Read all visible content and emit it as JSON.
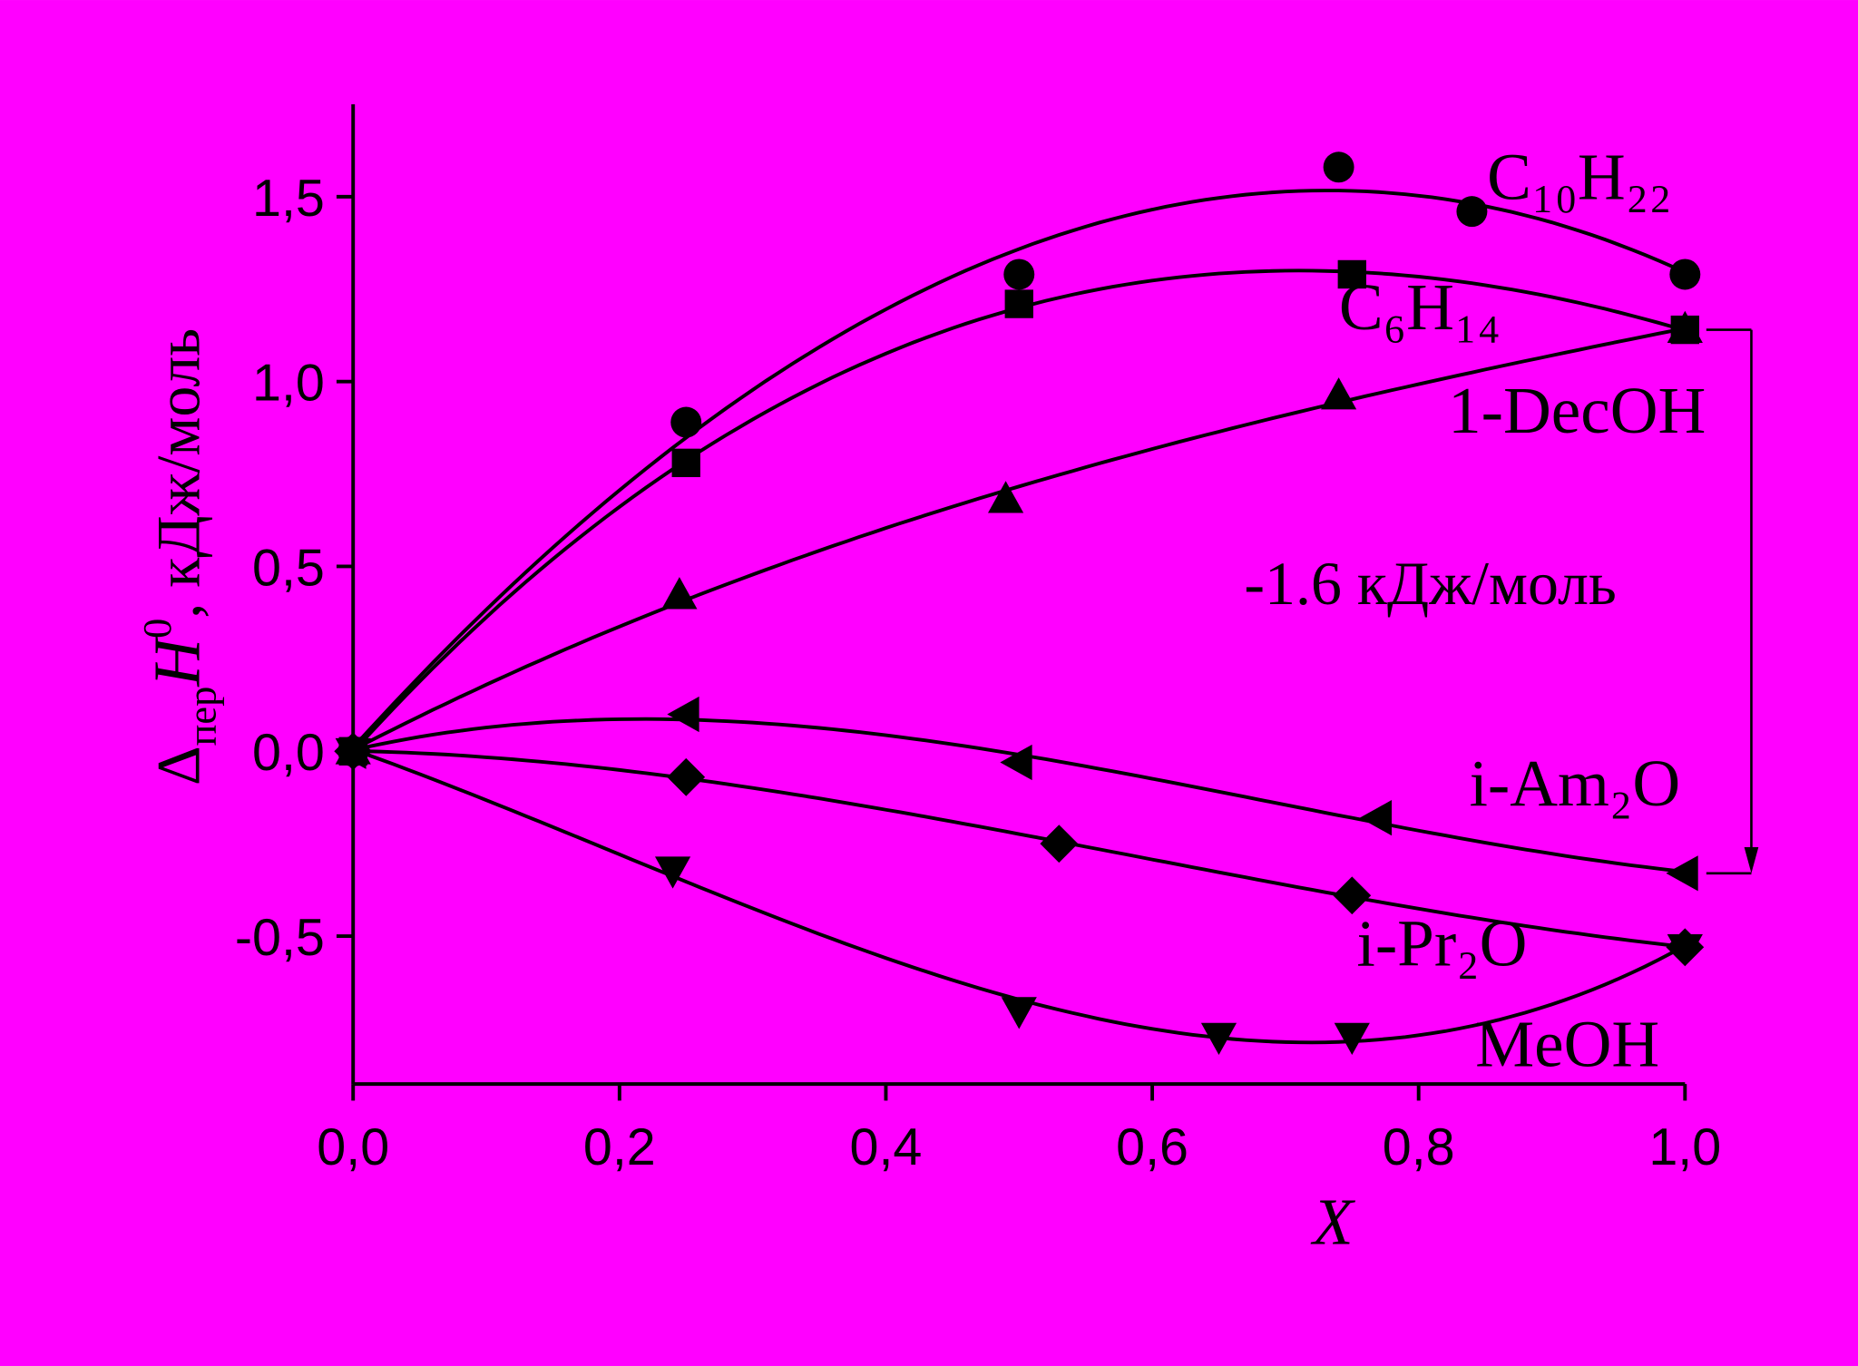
{
  "chart_data": {
    "type": "scatter",
    "background": "#ff00ff",
    "x_label": "X",
    "y_label": {
      "symbol": "Δ",
      "subscript": "пер",
      "variable": "H",
      "superscript": "0",
      "unit": ", кДж/моль"
    },
    "annotation": "-1.6 кДж/моль",
    "xlim": [
      0,
      1.0
    ],
    "ylim": [
      -0.9,
      1.75
    ],
    "xticks": [
      {
        "value": 0,
        "label": "0,0"
      },
      {
        "value": 0.2,
        "label": "0,2"
      },
      {
        "value": 0.4,
        "label": "0,4"
      },
      {
        "value": 0.6,
        "label": "0,6"
      },
      {
        "value": 0.8,
        "label": "0,8"
      },
      {
        "value": 1.0,
        "label": "1,0"
      }
    ],
    "yticks": [
      {
        "value": -0.5,
        "label": "-0,5"
      },
      {
        "value": 0,
        "label": "0,0"
      },
      {
        "value": 0.5,
        "label": "0,5"
      },
      {
        "value": 1.0,
        "label": "1,0"
      },
      {
        "value": 1.5,
        "label": "1,5"
      }
    ],
    "grid": false,
    "series": [
      {
        "name": "C₁₀H₂₂",
        "color": "#000000",
        "marker": "circle",
        "x": [
          0,
          0.25,
          0.5,
          0.74,
          0.84,
          1.0
        ],
        "values": [
          0,
          0.89,
          1.29,
          1.58,
          1.46,
          1.29
        ]
      },
      {
        "name": "C₆H₁₄",
        "color": "#000000",
        "marker": "square",
        "x": [
          0,
          0.25,
          0.5,
          0.75,
          1.0
        ],
        "values": [
          0,
          0.78,
          1.21,
          1.29,
          1.14
        ]
      },
      {
        "name": "1-DecOH",
        "color": "#000000",
        "marker": "triangle-up",
        "x": [
          0,
          0.245,
          0.49,
          0.74,
          1.0
        ],
        "values": [
          0,
          0.42,
          0.68,
          0.96,
          1.14
        ]
      },
      {
        "name": "i-Am₂O",
        "color": "#000000",
        "marker": "triangle-left",
        "x": [
          0,
          0.25,
          0.5,
          0.77,
          1.0
        ],
        "values": [
          0,
          0.1,
          -0.03,
          -0.18,
          -0.33
        ]
      },
      {
        "name": "i-Pr₂O",
        "color": "#000000",
        "marker": "diamond",
        "x": [
          0,
          0.25,
          0.53,
          0.75,
          1.0
        ],
        "values": [
          0,
          -0.07,
          -0.25,
          -0.39,
          -0.53
        ]
      },
      {
        "name": "MeOH",
        "color": "#000000",
        "marker": "triangle-down",
        "x": [
          0,
          0.24,
          0.5,
          0.65,
          0.75,
          1.0
        ],
        "values": [
          0,
          -0.32,
          -0.7,
          -0.77,
          -0.77,
          -0.53
        ]
      }
    ]
  }
}
